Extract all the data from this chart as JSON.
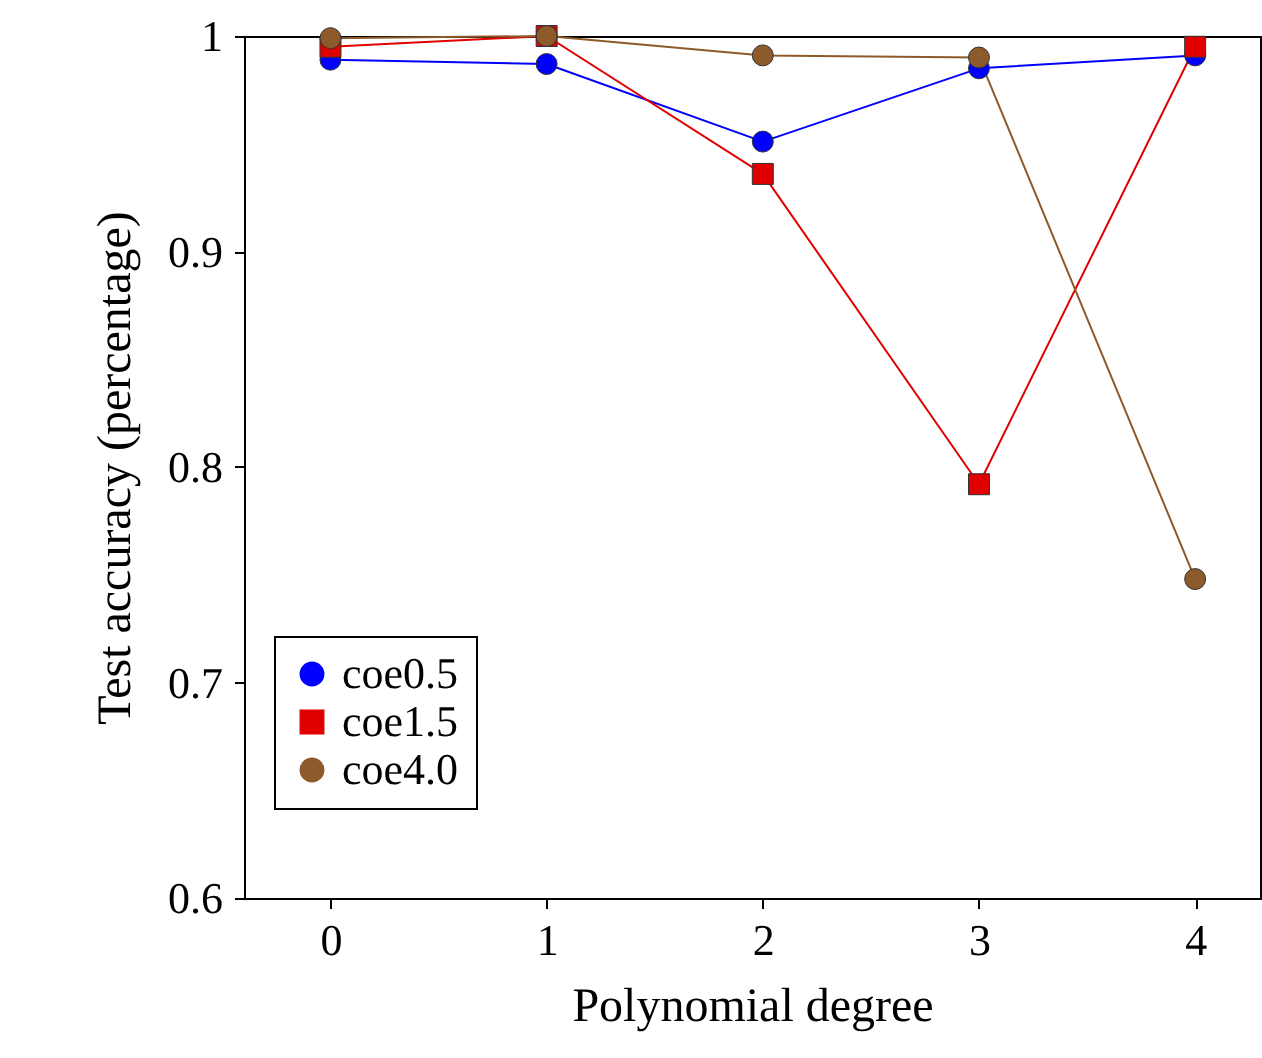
{
  "chart_data": {
    "type": "line",
    "xlabel": "Polynomial degree",
    "ylabel": "Test accuracy (percentage)",
    "x": [
      0,
      1,
      2,
      3,
      4
    ],
    "xlim": [
      -0.4,
      4.3
    ],
    "xticks": [
      0,
      1,
      2,
      3,
      4
    ],
    "ylim": [
      0.6,
      1
    ],
    "yticks": [
      0.6,
      0.7,
      0.8,
      0.9,
      1
    ],
    "grid": false,
    "legend": "bottom left",
    "series": [
      {
        "name": "coe0.5",
        "color": "#0000ff",
        "marker": "circle",
        "values": [
          0.989,
          0.987,
          0.951,
          0.985,
          0.991
        ]
      },
      {
        "name": "coe1.5",
        "color": "#e00000",
        "marker": "square",
        "values": [
          0.995,
          1.0,
          0.936,
          0.792,
          0.995
        ]
      },
      {
        "name": "coe4.0",
        "color": "#8c5a2b",
        "marker": "circle",
        "values": [
          0.999,
          1.0,
          0.991,
          0.99,
          0.748
        ]
      }
    ]
  }
}
